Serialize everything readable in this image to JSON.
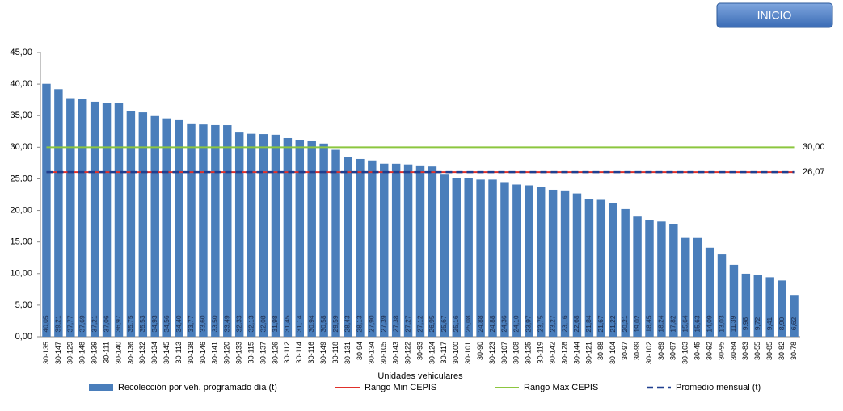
{
  "chart_data": {
    "type": "bar",
    "button": "INICIO",
    "x_label": "Unidades vehiculares",
    "categories": [
      "30-135",
      "30-147",
      "30-129",
      "30-148",
      "30-139",
      "30-111",
      "30-140",
      "30-136",
      "30-132",
      "30-134",
      "30-145",
      "30-113",
      "30-138",
      "30-146",
      "30-141",
      "30-120",
      "30-133",
      "30-115",
      "30-137",
      "30-126",
      "30-112",
      "30-114",
      "30-116",
      "30-149",
      "30-118",
      "30-131",
      "30-94",
      "30-134",
      "30-105",
      "30-143",
      "30-122",
      "30-93",
      "30-124",
      "30-117",
      "30-100",
      "30-101",
      "30-90",
      "30-123",
      "30-107",
      "30-108",
      "30-125",
      "30-119",
      "30-142",
      "30-128",
      "30-144",
      "30-121",
      "30-88",
      "30-104",
      "30-97",
      "30-99",
      "30-102",
      "30-89",
      "30-87",
      "30-103",
      "30-45",
      "30-92",
      "30-95",
      "30-84",
      "30-83",
      "30-55",
      "30-85",
      "30-82",
      "30-78"
    ],
    "series": [
      {
        "name": "Recolección por veh. programado día (t)",
        "color": "#4a7ebb",
        "values": [
          40.05,
          39.21,
          37.77,
          37.69,
          37.21,
          37.06,
          36.97,
          35.75,
          35.53,
          34.93,
          34.56,
          34.4,
          33.77,
          33.6,
          33.5,
          33.49,
          32.33,
          32.13,
          32.08,
          31.98,
          31.45,
          31.14,
          30.94,
          30.58,
          29.59,
          28.43,
          28.13,
          27.9,
          27.39,
          27.38,
          27.27,
          27.12,
          26.95,
          25.67,
          25.16,
          25.08,
          24.88,
          24.88,
          24.36,
          24.1,
          23.97,
          23.75,
          23.27,
          23.16,
          22.68,
          21.84,
          21.67,
          21.22,
          20.21,
          19.02,
          18.45,
          18.24,
          17.82,
          15.64,
          15.63,
          14.09,
          13.03,
          11.39,
          9.98,
          9.72,
          9.41,
          8.9,
          6.62
        ],
        "value_labels": [
          "40,05",
          "39,21",
          "37,77",
          "37,69",
          "37,21",
          "37,06",
          "36,97",
          "35,75",
          "35,53",
          "34,93",
          "34,56",
          "34,40",
          "33,77",
          "33,60",
          "33,50",
          "33,49",
          "32,33",
          "32,13",
          "32,08",
          "31,98",
          "31,45",
          "31,14",
          "30,94",
          "30,58",
          "29,59",
          "28,43",
          "28,13",
          "27,90",
          "27,39",
          "27,38",
          "27,27",
          "27,12",
          "26,95",
          "25,67",
          "25,16",
          "25,08",
          "24,88",
          "24,88",
          "24,36",
          "24,10",
          "23,97",
          "23,75",
          "23,27",
          "23,16",
          "22,68",
          "21,84",
          "21,67",
          "21,22",
          "20,21",
          "19,02",
          "18,45",
          "18,24",
          "17,82",
          "15,64",
          "15,63",
          "14,09",
          "13,03",
          "11,39",
          "9,98",
          "9,72",
          "9,41",
          "8,90",
          "6,62"
        ]
      }
    ],
    "reference_lines": [
      {
        "name": "Rango Min CEPIS",
        "color": "#e0302a",
        "value": 26.07,
        "dash": false
      },
      {
        "name": "Rango Max CEPIS",
        "color": "#8cc63f",
        "value": 30,
        "value_label": "30,00",
        "dash": false
      },
      {
        "name": "Promedio mensual (t)",
        "color": "#1f3f8f",
        "value": 26.07,
        "value_label": "26,07",
        "dash": true
      }
    ],
    "ylim": [
      0,
      45
    ],
    "yticks": [
      {
        "value": 0,
        "label": "0,00"
      },
      {
        "value": 5,
        "label": "5,00"
      },
      {
        "value": 10,
        "label": "10,00"
      },
      {
        "value": 15,
        "label": "15,00"
      },
      {
        "value": 20,
        "label": "20,00"
      },
      {
        "value": 25,
        "label": "25,00"
      },
      {
        "value": 30,
        "label": "30,00"
      },
      {
        "value": 35,
        "label": "35,00"
      },
      {
        "value": 40,
        "label": "40,00"
      },
      {
        "value": 45,
        "label": "45,00"
      }
    ]
  }
}
